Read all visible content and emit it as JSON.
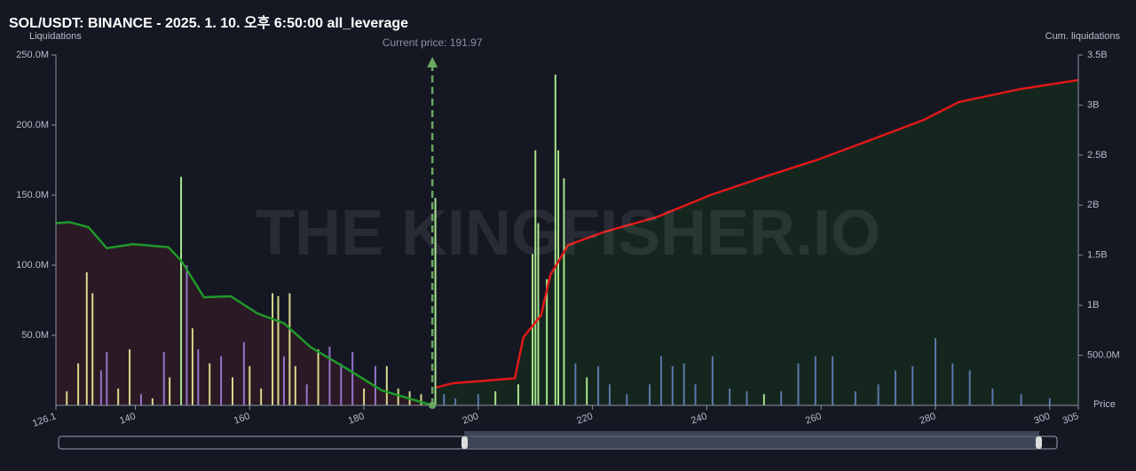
{
  "chart_data": {
    "type": "combo",
    "title": "SOL/USDT: BINANCE - 2025. 1. 10. 오후 6:50:00 all_leverage",
    "y_label": "Liquidations",
    "y2_label": "Cum. liquidations",
    "x_label": "Price",
    "watermark": "THE KINGFISHER.IO",
    "current_price": {
      "label": "Current price: 191.97",
      "value": 191.97
    },
    "xlim": [
      126.1,
      305
    ],
    "xticks": [
      126.1,
      140,
      160,
      180,
      200,
      220,
      240,
      260,
      280,
      300,
      305
    ],
    "ylim": [
      0,
      250
    ],
    "yticks": [
      {
        "value": 50,
        "label": "50.0M"
      },
      {
        "value": 100,
        "label": "100.0M"
      },
      {
        "value": 150,
        "label": "150.0M"
      },
      {
        "value": 200,
        "label": "200.0M"
      },
      {
        "value": 250,
        "label": "250.0M"
      }
    ],
    "y2lim": [
      0,
      3.5
    ],
    "y2ticks": [
      {
        "value": 0.5,
        "label": "500.0M"
      },
      {
        "value": 1,
        "label": "1B"
      },
      {
        "value": 1.5,
        "label": "1.5B"
      },
      {
        "value": 2,
        "label": "2B"
      },
      {
        "value": 2.5,
        "label": "2.5B"
      },
      {
        "value": 3,
        "label": "3B"
      },
      {
        "value": 3.5,
        "label": "3.5B"
      }
    ],
    "bars": [
      {
        "color": "#d8d88c",
        "x": [
          128,
          130,
          131.5,
          132.5,
          137,
          139,
          143,
          146,
          150,
          153,
          157,
          160,
          162,
          164,
          165,
          167,
          168,
          172,
          180,
          184,
          186,
          188,
          190
        ],
        "values": [
          10,
          30,
          95,
          80,
          12,
          40,
          5,
          20,
          55,
          30,
          20,
          28,
          12,
          80,
          78,
          80,
          28,
          40,
          12,
          28,
          12,
          10,
          8
        ]
      },
      {
        "color": "#9474c8",
        "x": [
          134,
          135,
          141,
          145,
          149,
          151,
          155,
          159,
          166,
          170,
          174,
          176,
          178,
          182
        ],
        "values": [
          25,
          38,
          8,
          38,
          100,
          40,
          35,
          45,
          35,
          15,
          42,
          30,
          38,
          28
        ]
      },
      {
        "color": "#a6e38a",
        "x": [
          148,
          192.5,
          203,
          207,
          209.5,
          210,
          210.5,
          212,
          213.5,
          214,
          215,
          219,
          250
        ],
        "values": [
          163,
          148,
          10,
          15,
          108,
          182,
          130,
          90,
          236,
          182,
          162,
          20,
          8
        ]
      },
      {
        "color": "#5a78a8",
        "x": [
          194,
          196,
          200,
          217,
          221,
          223,
          226,
          230,
          232,
          234,
          236,
          238,
          241,
          244,
          247,
          253,
          256,
          259,
          262,
          266,
          270,
          273,
          276,
          280,
          283,
          286,
          290,
          295,
          300
        ],
        "values": [
          8,
          5,
          8,
          30,
          28,
          15,
          8,
          15,
          35,
          28,
          30,
          15,
          35,
          12,
          10,
          10,
          30,
          35,
          35,
          10,
          15,
          25,
          28,
          48,
          30,
          25,
          12,
          8,
          5
        ]
      }
    ],
    "lines": [
      {
        "axis": "y2",
        "color": "#1f9a2a",
        "fill": "#2b1a25",
        "x": [
          126.1,
          128.5,
          131.8,
          135,
          139.6,
          145.8,
          148.1,
          152,
          156.7,
          161.3,
          166,
          170.7,
          176.9,
          183.1,
          192
        ],
        "values": [
          1.82,
          1.83,
          1.78,
          1.57,
          1.61,
          1.58,
          1.44,
          1.08,
          1.09,
          0.92,
          0.82,
          0.58,
          0.37,
          0.15,
          0
        ]
      },
      {
        "axis": "y2",
        "color": "#e01818",
        "fill": "#15261f",
        "x": [
          192.7,
          195.5,
          206.4,
          207.9,
          211,
          212.6,
          215.7,
          221.9,
          231.2,
          240.6,
          249.9,
          259.2,
          268.6,
          277.9,
          284.1,
          294.9,
          305
        ],
        "values": [
          0.18,
          0.22,
          0.27,
          0.68,
          0.9,
          1.3,
          1.6,
          1.73,
          1.88,
          2.1,
          2.28,
          2.45,
          2.65,
          2.85,
          3.03,
          3.16,
          3.25
        ]
      }
    ]
  }
}
